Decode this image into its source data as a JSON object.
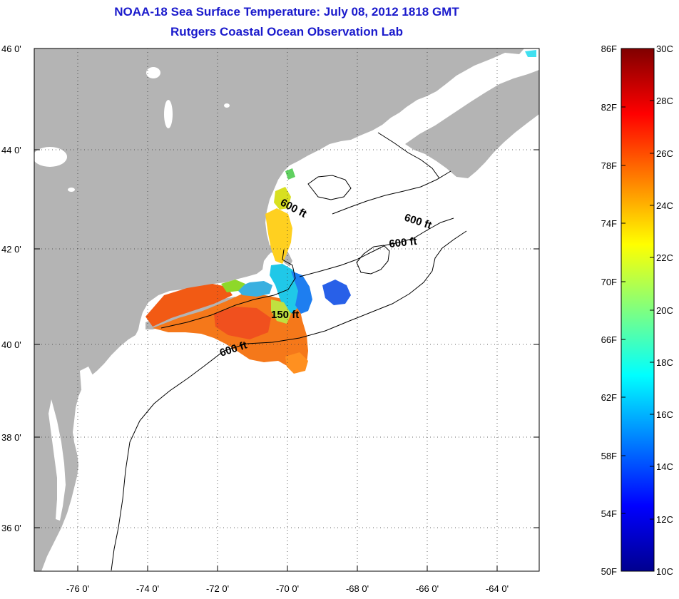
{
  "title": {
    "line1": "NOAA-18 Sea Surface Temperature:  July 08, 2012 1818 GMT",
    "line2": "Rutgers Coastal Ocean Observation Lab"
  },
  "map": {
    "lat_labels": [
      "46 0'",
      "44 0'",
      "42 0'",
      "40 0'",
      "38 0'",
      "36 0'"
    ],
    "lon_labels": [
      "-76 0'",
      "-74 0'",
      "-72 0'",
      "-70 0'",
      "-68 0'",
      "-66 0'",
      "-64 0'"
    ],
    "contour_labels": [
      "600 ft",
      "600 ft",
      "600 ft",
      "150 ft",
      "600 ft"
    ],
    "colors": {
      "land": "#b4b4b4",
      "ocean": "#ffffff",
      "coast": "#000000"
    }
  },
  "colorbar": {
    "f_labels": [
      "86F",
      "82F",
      "78F",
      "74F",
      "70F",
      "66F",
      "62F",
      "58F",
      "54F",
      "50F"
    ],
    "c_labels": [
      "30C",
      "28C",
      "26C",
      "24C",
      "22C",
      "20C",
      "18C",
      "16C",
      "14C",
      "12C",
      "10C"
    ],
    "range_c": [
      10,
      30
    ],
    "range_f": [
      50,
      86
    ]
  }
}
